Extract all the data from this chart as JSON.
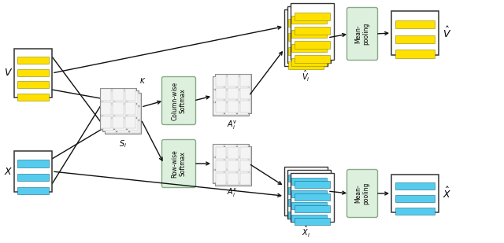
{
  "fig_width": 6.4,
  "fig_height": 3.09,
  "dpi": 100,
  "bg_color": "#ffffff",
  "yellow": "#FFE000",
  "yellow_dark": "#888800",
  "cyan": "#55CCEE",
  "cyan_dark": "#116688",
  "gray_fill": "#E0E0E0",
  "gray_border": "#888888",
  "green_box": "#DDF0DD",
  "green_border": "#88AA88",
  "white_box": "#FFFFFF",
  "arrow_color": "#111111",
  "text_color": "#000000",
  "V_label": "V",
  "X_label": "X",
  "Si_label": "$S_i$",
  "K_label": "$K$",
  "colwise_label": "Column-wise\nSoftmax",
  "rowwise_label": "Row-wise\nSoftmax",
  "Aiv_label": "$A_i^v$",
  "Aix_label": "$A_i^x$",
  "Vhat_i_label": "$\\hat{V}_i$",
  "Xhat_i_label": "$\\hat{X}_i$",
  "meanpool_label": "Mean-\npooling",
  "Vhat_label": "$\\hat{V}$",
  "Xhat_label": "$\\hat{X}$"
}
